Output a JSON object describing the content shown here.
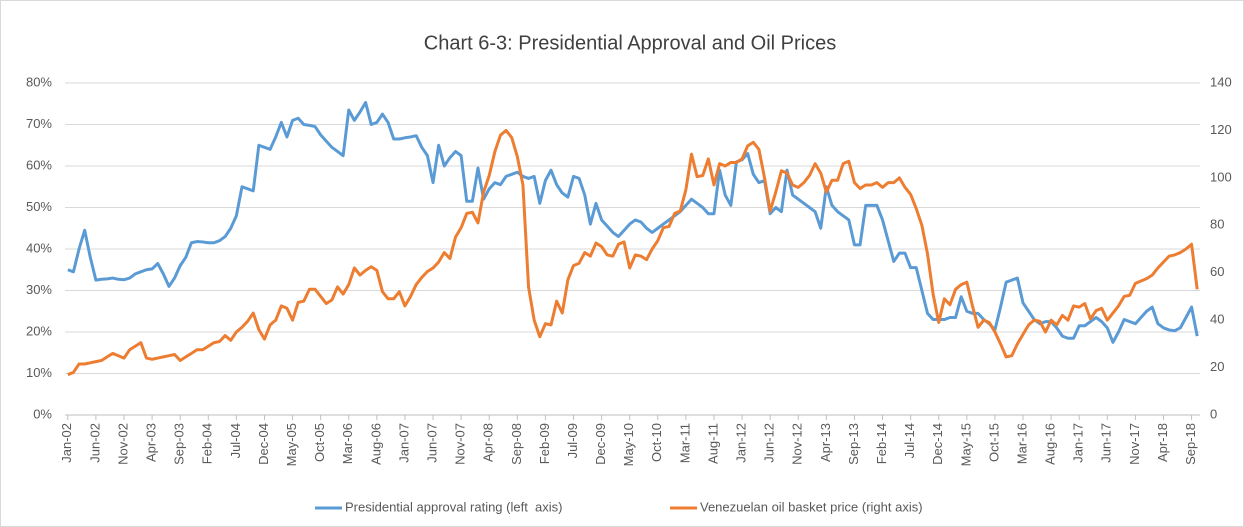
{
  "chart_data": {
    "type": "line",
    "title": "Chart 6-3: Presidential Approval and Oil Prices",
    "categories": [
      "Jan-02",
      null,
      null,
      null,
      null,
      "Jun-02",
      null,
      null,
      null,
      null,
      "Nov-02",
      null,
      null,
      null,
      null,
      "Apr-03",
      null,
      null,
      null,
      null,
      "Sep-03",
      null,
      null,
      null,
      null,
      "Feb-04",
      null,
      null,
      null,
      null,
      "Jul-04",
      null,
      null,
      null,
      null,
      "Dec-04",
      null,
      null,
      null,
      null,
      "May-05",
      null,
      null,
      null,
      null,
      "Oct-05",
      null,
      null,
      null,
      null,
      "Mar-06",
      null,
      null,
      null,
      null,
      "Aug-06",
      null,
      null,
      null,
      null,
      "Jan-07",
      null,
      null,
      null,
      null,
      "Jun-07",
      null,
      null,
      null,
      null,
      "Nov-07",
      null,
      null,
      null,
      null,
      "Apr-08",
      null,
      null,
      null,
      null,
      "Sep-08",
      null,
      null,
      null,
      null,
      "Feb-09",
      null,
      null,
      null,
      null,
      "Jul-09",
      null,
      null,
      null,
      null,
      "Dec-09",
      null,
      null,
      null,
      null,
      "May-10",
      null,
      null,
      null,
      null,
      "Oct-10",
      null,
      null,
      null,
      null,
      "Mar-11",
      null,
      null,
      null,
      null,
      "Aug-11",
      null,
      null,
      null,
      null,
      "Jan-12",
      null,
      null,
      null,
      null,
      "Jun-12",
      null,
      null,
      null,
      null,
      "Nov-12",
      null,
      null,
      null,
      null,
      "Apr-13",
      null,
      null,
      null,
      null,
      "Sep-13",
      null,
      null,
      null,
      null,
      "Feb-14",
      null,
      null,
      null,
      null,
      "Jul-14",
      null,
      null,
      null,
      null,
      "Dec-14",
      null,
      null,
      null,
      null,
      "May-15",
      null,
      null,
      null,
      null,
      "Oct-15",
      null,
      null,
      null,
      null,
      "Mar-16",
      null,
      null,
      null,
      null,
      "Aug-16",
      null,
      null,
      null,
      null,
      "Jan-17",
      null,
      null,
      null,
      null,
      "Jun-17",
      null,
      null,
      null,
      null,
      "Nov-17",
      null,
      null,
      null,
      null,
      "Apr-18",
      null,
      null,
      null,
      null,
      "Sep-18",
      null
    ],
    "series": [
      {
        "name": "Presidential approval rating (left  axis)",
        "color": "#5b9bd5",
        "axis": "y",
        "values": [
          35,
          34.5,
          40,
          44.5,
          38,
          32.5,
          32.7,
          32.8,
          33,
          32.7,
          32.6,
          33,
          34,
          34.5,
          35,
          35.2,
          36.5,
          34,
          31,
          33,
          36,
          38,
          41.5,
          41.8,
          41.7,
          41.5,
          41.5,
          42,
          43,
          45,
          48,
          55,
          54.5,
          54,
          65,
          64.5,
          64,
          67,
          70.5,
          67,
          71,
          71.5,
          70,
          69.8,
          69.5,
          67.5,
          66,
          64.5,
          63.5,
          62.5,
          73.5,
          71,
          73,
          75.3,
          70,
          70.5,
          72.5,
          70.5,
          66.5,
          66.5,
          66.8,
          67,
          67.3,
          64.5,
          62.5,
          56,
          65,
          60,
          62,
          63.5,
          62.5,
          51.5,
          51.5,
          59.5,
          52,
          54.5,
          56,
          55.5,
          57.5,
          58,
          58.5,
          57.5,
          57,
          57.5,
          51,
          56.5,
          59,
          55.5,
          53.5,
          52.5,
          57.5,
          57,
          53,
          46,
          51,
          47,
          45.5,
          44,
          43,
          44.5,
          46,
          47,
          46.5,
          45,
          44,
          45,
          46,
          47,
          48,
          49,
          50.5,
          52,
          51,
          50,
          48.5,
          48.5,
          59,
          53,
          50.5,
          61,
          61.5,
          63,
          58,
          56,
          56.5,
          48.5,
          50,
          49,
          59,
          53,
          52,
          51,
          50,
          49,
          45,
          55,
          50.5,
          49,
          48,
          47,
          41,
          41,
          50.5,
          50.5,
          50.5,
          47,
          42,
          37,
          39,
          39,
          35.5,
          35.5,
          30,
          24.5,
          23,
          23,
          23,
          23.5,
          23.5,
          28.5,
          25,
          24.5,
          24.5,
          23,
          22,
          20.5,
          26,
          32,
          32.5,
          33,
          27,
          25,
          23,
          22,
          22.5,
          22.5,
          21,
          19,
          18.5,
          18.5,
          21.5,
          21.5,
          22.5,
          23.5,
          22.5,
          21,
          17.5,
          20,
          23,
          22.5,
          22,
          23.5,
          25,
          26,
          22,
          21,
          20.5,
          20.3,
          21,
          23.5,
          26,
          19
        ]
      },
      {
        "name": "Venezuelan oil basket price (right axis)",
        "color": "#ed7d31",
        "axis": "y2",
        "values": [
          17,
          18,
          21.5,
          21.5,
          22,
          22.5,
          23,
          24.5,
          26,
          25,
          24,
          27.5,
          29,
          30.5,
          24,
          23.5,
          24,
          24.5,
          25,
          25.5,
          23,
          24.5,
          26,
          27.5,
          27.5,
          29,
          30.5,
          31,
          33.5,
          31.5,
          35,
          37,
          39.5,
          43,
          36,
          32,
          38,
          40,
          46,
          45,
          40,
          47.5,
          48,
          53,
          53,
          50,
          47,
          48.5,
          54,
          51,
          55,
          62,
          59,
          61,
          62.5,
          61,
          52,
          49,
          49,
          52,
          46,
          50,
          55,
          58,
          60.5,
          62,
          64.5,
          68.5,
          66,
          75,
          79,
          85,
          85.5,
          81,
          94,
          101,
          111,
          118,
          120,
          117,
          109,
          97,
          54,
          40,
          33,
          38.5,
          38,
          48,
          43,
          57,
          63,
          64,
          68.5,
          67,
          72.5,
          71,
          67.5,
          67,
          72,
          73,
          62,
          67.5,
          67,
          65.5,
          70,
          73.5,
          79,
          79.5,
          85,
          86,
          95,
          110,
          100.5,
          101,
          108,
          97,
          106,
          105,
          106.5,
          106.5,
          108,
          113.5,
          115,
          112,
          100,
          86,
          94,
          103,
          102,
          97,
          96,
          98,
          101,
          106,
          102,
          94,
          99,
          99,
          106,
          107,
          98,
          95.5,
          97,
          97,
          98,
          96,
          98,
          98,
          100,
          96,
          93,
          87,
          80,
          68,
          51,
          39,
          49,
          46.5,
          53,
          55,
          56,
          46,
          37,
          40,
          39,
          35,
          30,
          24.5,
          25,
          30,
          34,
          38,
          40,
          39.5,
          35,
          40,
          38,
          42,
          40,
          46,
          45.5,
          47,
          40.5,
          44,
          45,
          40,
          43,
          46,
          50,
          50.5,
          55.5,
          56.5,
          57.5,
          59,
          62,
          64.5,
          67,
          67.5,
          68.5,
          70,
          72,
          53
        ]
      }
    ],
    "ylim": [
      0,
      80
    ],
    "yticks": [
      {
        "value": 0,
        "label": "0%"
      },
      {
        "value": 10,
        "label": "10%"
      },
      {
        "value": 20,
        "label": "20%"
      },
      {
        "value": 30,
        "label": "30%"
      },
      {
        "value": 40,
        "label": "40%"
      },
      {
        "value": 50,
        "label": "50%"
      },
      {
        "value": 60,
        "label": "60%"
      },
      {
        "value": 70,
        "label": "70%"
      },
      {
        "value": 80,
        "label": "80%"
      }
    ],
    "y2lim": [
      0,
      140
    ],
    "y2ticks": [
      0,
      20,
      40,
      60,
      80,
      100,
      120,
      140
    ],
    "grid": true,
    "legend": "bottom"
  }
}
